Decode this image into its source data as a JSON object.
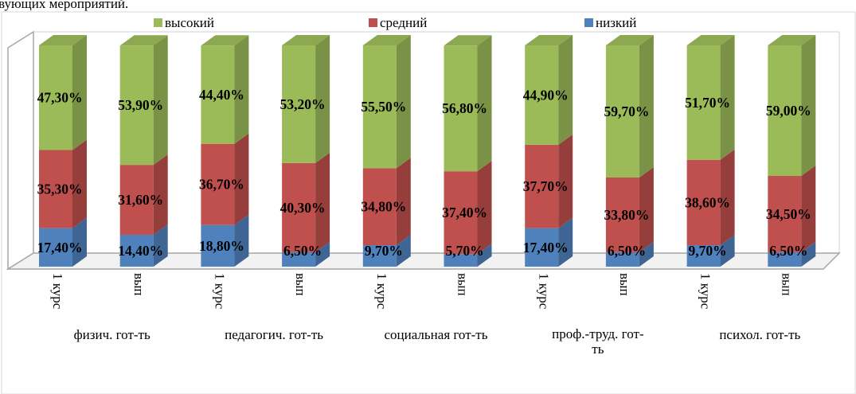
{
  "header_fragment": "вующих мероприятий.",
  "chart_data": {
    "type": "bar",
    "stacked": true,
    "style": "3d-column",
    "categories": [
      "1 курс",
      "вып",
      "1 курс",
      "вып",
      "1 курс",
      "вып",
      "1 курс",
      "вып",
      "1 курс",
      "вып"
    ],
    "groups": [
      {
        "label": "физич. гот-ть",
        "span": 2
      },
      {
        "label": "педагогич. гот-ть",
        "span": 2
      },
      {
        "label": "социальная гот-ть",
        "span": 2
      },
      {
        "label": "проф.-труд. гот-ть",
        "span": 2
      },
      {
        "label": "психол. гот-ть",
        "span": 2
      }
    ],
    "series": [
      {
        "name": "низкий",
        "color": "#4F81BD",
        "values": [
          17.4,
          14.4,
          18.8,
          6.5,
          9.7,
          5.7,
          17.4,
          6.5,
          9.7,
          6.5
        ],
        "labels": [
          "17,40%",
          "14,40%",
          "18,80%",
          "6,50%",
          "9,70%",
          "5,70%",
          "17,40%",
          "6,50%",
          "9,70%",
          "6,50%"
        ]
      },
      {
        "name": "средний",
        "color": "#C0504D",
        "values": [
          35.3,
          31.6,
          36.7,
          40.3,
          34.8,
          37.4,
          37.7,
          33.8,
          38.6,
          34.5
        ],
        "labels": [
          "35,30%",
          "31,60%",
          "36,70%",
          "40,30%",
          "34,80%",
          "37,40%",
          "37,70%",
          "33,80%",
          "38,60%",
          "34,50%"
        ]
      },
      {
        "name": "высокий",
        "color": "#9BBB59",
        "values": [
          47.3,
          53.9,
          44.4,
          53.2,
          55.5,
          56.8,
          44.9,
          59.7,
          51.7,
          59.0
        ],
        "labels": [
          "47,30%",
          "53,90%",
          "44,40%",
          "53,20%",
          "55,50%",
          "56,80%",
          "44,90%",
          "59,70%",
          "51,70%",
          "59,00%"
        ]
      }
    ],
    "legend_order": [
      "высокий",
      "средний",
      "низкий"
    ],
    "legend_position": "top",
    "ylim": [
      0,
      100
    ],
    "grid": false
  }
}
